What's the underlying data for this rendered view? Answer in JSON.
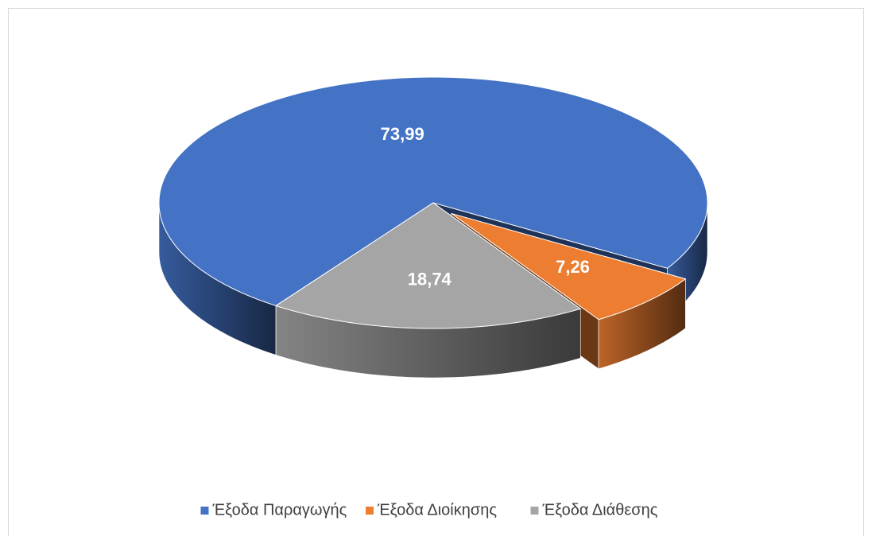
{
  "chart_data": {
    "type": "pie",
    "categories": [
      "Έξοδα Παραγωγής",
      "Έξοδα Διοίκησης",
      "Έξοδα Διάθεσης"
    ],
    "values": [
      73.99,
      7.26,
      18.74
    ],
    "value_labels": [
      "73,99",
      "7,26",
      "18,74"
    ],
    "colors": [
      "#4472c4",
      "#ed7d31",
      "#a5a5a5"
    ],
    "legend": "bottom"
  }
}
